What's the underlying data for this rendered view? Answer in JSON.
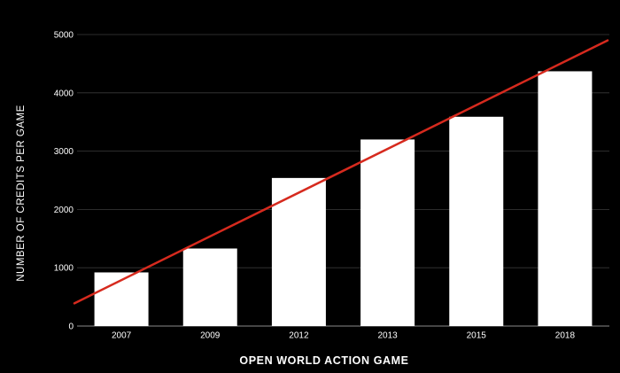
{
  "chart_data": {
    "type": "bar",
    "title": "",
    "xlabel": "OPEN WORLD ACTION GAME",
    "ylabel": "NUMBER OF CREDITS PER GAME",
    "categories": [
      "2007",
      "2009",
      "2012",
      "2013",
      "2015",
      "2018"
    ],
    "series": [
      {
        "values": [
          920,
          1330,
          2540,
          3200,
          3590,
          4370
        ]
      }
    ],
    "trendline": {
      "type": "linear",
      "start_value": 390,
      "end_value": 4900
    },
    "yticks": [
      "0",
      "1000",
      "2000",
      "3000",
      "4000",
      "5000"
    ],
    "ylim": [
      0,
      5000
    ],
    "grid": true,
    "legend": "none",
    "colors": {
      "background": "#000000",
      "bars": "#ffffff",
      "trendline": "#d62a1e",
      "gridlines": "#3a3a3a",
      "text": "#ffffff"
    }
  }
}
